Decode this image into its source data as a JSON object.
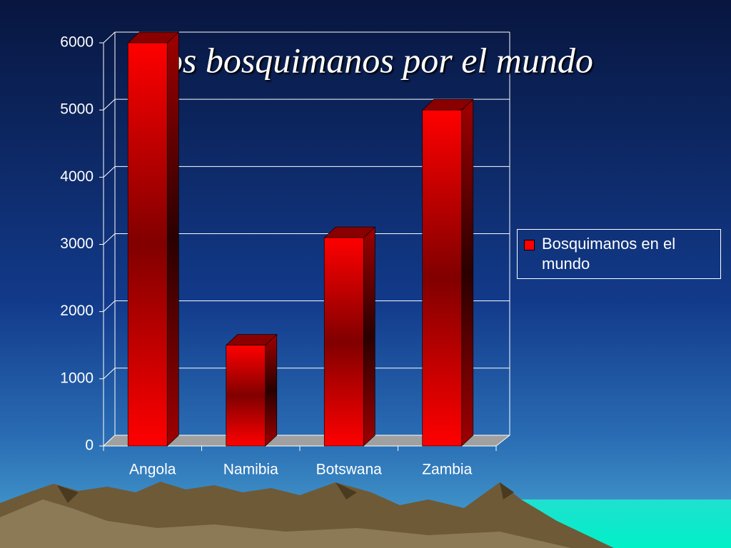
{
  "chart_data": {
    "type": "bar",
    "title": "Los bosquimanos por el mundo",
    "categories": [
      "Angola",
      "Namibia",
      "Botswana",
      "Zambia"
    ],
    "series": [
      {
        "name": "Bosquimanos en el mundo",
        "color": "#ff0000",
        "values": [
          6000,
          1500,
          3100,
          5000
        ]
      }
    ],
    "ylim": [
      0,
      6000
    ],
    "yticks": [
      0,
      1000,
      2000,
      3000,
      4000,
      5000,
      6000
    ],
    "grid": true,
    "legend": "right"
  }
}
